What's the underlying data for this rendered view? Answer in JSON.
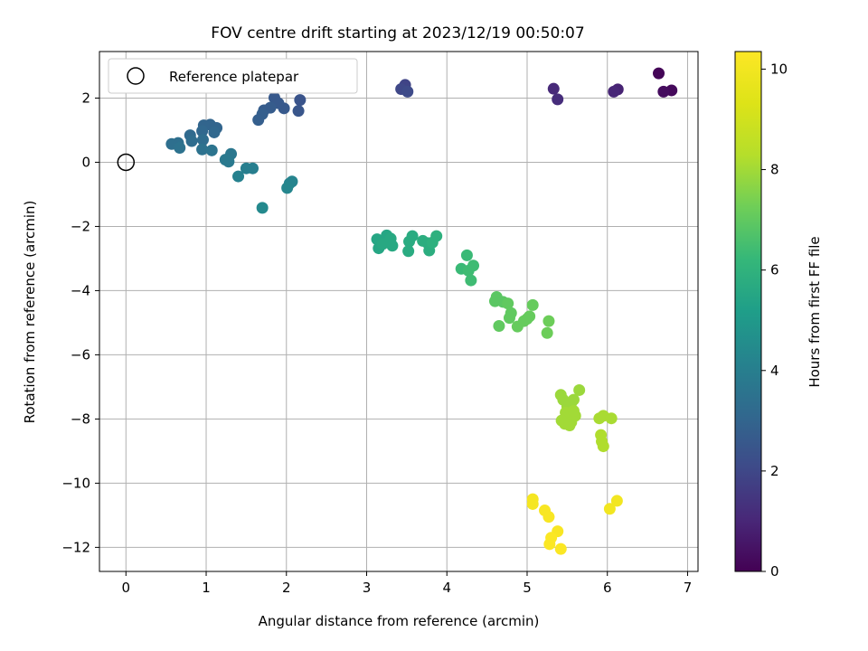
{
  "chart_data": {
    "type": "scatter",
    "title": "FOV centre drift starting at 2023/12/19 00:50:07",
    "xlabel": "Angular distance from reference (arcmin)",
    "ylabel": "Rotation from reference (arcmin)",
    "xlim": [
      -0.33,
      7.13
    ],
    "ylim": [
      -12.75,
      3.45
    ],
    "xticks": [
      0,
      1,
      2,
      3,
      4,
      5,
      6,
      7
    ],
    "xtick_labels": [
      "0",
      "1",
      "2",
      "3",
      "4",
      "5",
      "6",
      "7"
    ],
    "yticks": [
      2,
      0,
      -2,
      -4,
      -6,
      -8,
      -10,
      -12
    ],
    "ytick_labels": [
      "2",
      "0",
      "−2",
      "−4",
      "−6",
      "−8",
      "−10",
      "−12"
    ],
    "grid": true,
    "legend": {
      "placement": "top-left",
      "entries": [
        "Reference platepar"
      ]
    },
    "reference_point": {
      "x": 0,
      "y": 0
    },
    "colorbar": {
      "label": "Hours from first FF file",
      "range": [
        0,
        10.35
      ],
      "ticks": [
        0,
        2,
        4,
        6,
        8,
        10
      ],
      "tick_labels": [
        "0",
        "2",
        "4",
        "6",
        "8",
        "10"
      ],
      "colormap": "viridis"
    },
    "points": [
      {
        "x": 6.64,
        "y": 2.77,
        "h": 0.1
      },
      {
        "x": 6.8,
        "y": 2.24,
        "h": 0.2
      },
      {
        "x": 6.7,
        "y": 2.2,
        "h": 0.3
      },
      {
        "x": 6.13,
        "y": 2.27,
        "h": 0.9
      },
      {
        "x": 6.08,
        "y": 2.2,
        "h": 1.0
      },
      {
        "x": 5.33,
        "y": 2.29,
        "h": 1.1
      },
      {
        "x": 5.38,
        "y": 1.96,
        "h": 1.2
      },
      {
        "x": 3.48,
        "y": 2.41,
        "h": 1.9
      },
      {
        "x": 3.43,
        "y": 2.28,
        "h": 2.0
      },
      {
        "x": 3.51,
        "y": 2.2,
        "h": 2.1
      },
      {
        "x": 2.17,
        "y": 1.94,
        "h": 2.4
      },
      {
        "x": 2.15,
        "y": 1.6,
        "h": 2.5
      },
      {
        "x": 1.97,
        "y": 1.68,
        "h": 2.6
      },
      {
        "x": 1.85,
        "y": 2.01,
        "h": 2.6
      },
      {
        "x": 1.9,
        "y": 1.84,
        "h": 2.6
      },
      {
        "x": 1.8,
        "y": 1.7,
        "h": 2.7
      },
      {
        "x": 1.72,
        "y": 1.62,
        "h": 2.7
      },
      {
        "x": 1.7,
        "y": 1.5,
        "h": 2.8
      },
      {
        "x": 1.65,
        "y": 1.32,
        "h": 2.8
      },
      {
        "x": 1.13,
        "y": 1.07,
        "h": 3.0
      },
      {
        "x": 1.05,
        "y": 1.17,
        "h": 3.0
      },
      {
        "x": 0.97,
        "y": 1.15,
        "h": 3.0
      },
      {
        "x": 0.95,
        "y": 0.97,
        "h": 3.1
      },
      {
        "x": 1.1,
        "y": 0.93,
        "h": 3.1
      },
      {
        "x": 0.8,
        "y": 0.84,
        "h": 3.2
      },
      {
        "x": 0.96,
        "y": 0.7,
        "h": 3.3
      },
      {
        "x": 0.82,
        "y": 0.66,
        "h": 3.3
      },
      {
        "x": 0.65,
        "y": 0.6,
        "h": 3.4
      },
      {
        "x": 0.57,
        "y": 0.57,
        "h": 3.4
      },
      {
        "x": 0.67,
        "y": 0.45,
        "h": 3.5
      },
      {
        "x": 0.95,
        "y": 0.4,
        "h": 3.5
      },
      {
        "x": 1.07,
        "y": 0.37,
        "h": 3.6
      },
      {
        "x": 1.31,
        "y": 0.26,
        "h": 3.7
      },
      {
        "x": 1.24,
        "y": 0.08,
        "h": 3.8
      },
      {
        "x": 1.28,
        "y": 0.02,
        "h": 3.8
      },
      {
        "x": 1.58,
        "y": -0.19,
        "h": 4.0
      },
      {
        "x": 1.5,
        "y": -0.19,
        "h": 4.0
      },
      {
        "x": 1.4,
        "y": -0.44,
        "h": 4.1
      },
      {
        "x": 2.07,
        "y": -0.6,
        "h": 4.2
      },
      {
        "x": 2.04,
        "y": -0.66,
        "h": 4.2
      },
      {
        "x": 2.01,
        "y": -0.8,
        "h": 4.3
      },
      {
        "x": 1.7,
        "y": -1.42,
        "h": 4.4
      },
      {
        "x": 3.13,
        "y": -2.4,
        "h": 5.5
      },
      {
        "x": 3.15,
        "y": -2.68,
        "h": 5.5
      },
      {
        "x": 3.25,
        "y": -2.28,
        "h": 5.5
      },
      {
        "x": 3.2,
        "y": -2.55,
        "h": 5.6
      },
      {
        "x": 3.3,
        "y": -2.38,
        "h": 5.6
      },
      {
        "x": 3.32,
        "y": -2.6,
        "h": 5.6
      },
      {
        "x": 3.53,
        "y": -2.47,
        "h": 5.7
      },
      {
        "x": 3.57,
        "y": -2.3,
        "h": 5.7
      },
      {
        "x": 3.52,
        "y": -2.77,
        "h": 5.7
      },
      {
        "x": 3.7,
        "y": -2.45,
        "h": 5.8
      },
      {
        "x": 3.76,
        "y": -2.52,
        "h": 5.8
      },
      {
        "x": 3.78,
        "y": -2.75,
        "h": 5.8
      },
      {
        "x": 3.82,
        "y": -2.5,
        "h": 5.9
      },
      {
        "x": 3.87,
        "y": -2.3,
        "h": 5.9
      },
      {
        "x": 4.18,
        "y": -3.32,
        "h": 6.3
      },
      {
        "x": 4.25,
        "y": -2.9,
        "h": 6.3
      },
      {
        "x": 4.27,
        "y": -3.38,
        "h": 6.4
      },
      {
        "x": 4.33,
        "y": -3.22,
        "h": 6.4
      },
      {
        "x": 4.3,
        "y": -3.68,
        "h": 6.4
      },
      {
        "x": 4.6,
        "y": -4.33,
        "h": 6.9
      },
      {
        "x": 4.62,
        "y": -4.2,
        "h": 6.9
      },
      {
        "x": 4.7,
        "y": -4.35,
        "h": 6.9
      },
      {
        "x": 4.76,
        "y": -4.4,
        "h": 7.0
      },
      {
        "x": 4.8,
        "y": -4.7,
        "h": 7.0
      },
      {
        "x": 4.78,
        "y": -4.85,
        "h": 7.0
      },
      {
        "x": 4.65,
        "y": -5.1,
        "h": 7.0
      },
      {
        "x": 4.88,
        "y": -5.12,
        "h": 7.1
      },
      {
        "x": 4.96,
        "y": -4.95,
        "h": 7.1
      },
      {
        "x": 5.03,
        "y": -4.8,
        "h": 7.1
      },
      {
        "x": 5.07,
        "y": -4.45,
        "h": 7.1
      },
      {
        "x": 5.0,
        "y": -4.88,
        "h": 7.1
      },
      {
        "x": 5.27,
        "y": -4.95,
        "h": 7.2
      },
      {
        "x": 5.25,
        "y": -5.32,
        "h": 7.2
      },
      {
        "x": 5.42,
        "y": -7.25,
        "h": 7.9
      },
      {
        "x": 5.45,
        "y": -7.4,
        "h": 7.9
      },
      {
        "x": 5.5,
        "y": -7.6,
        "h": 7.9
      },
      {
        "x": 5.55,
        "y": -7.5,
        "h": 7.9
      },
      {
        "x": 5.58,
        "y": -7.4,
        "h": 7.9
      },
      {
        "x": 5.65,
        "y": -7.1,
        "h": 7.9
      },
      {
        "x": 5.48,
        "y": -7.8,
        "h": 8.0
      },
      {
        "x": 5.52,
        "y": -7.95,
        "h": 8.0
      },
      {
        "x": 5.55,
        "y": -8.1,
        "h": 8.0
      },
      {
        "x": 5.6,
        "y": -7.9,
        "h": 8.0
      },
      {
        "x": 5.43,
        "y": -8.05,
        "h": 8.0
      },
      {
        "x": 5.47,
        "y": -8.15,
        "h": 8.0
      },
      {
        "x": 5.58,
        "y": -7.75,
        "h": 8.0
      },
      {
        "x": 5.53,
        "y": -8.2,
        "h": 8.0
      },
      {
        "x": 5.9,
        "y": -7.98,
        "h": 8.1
      },
      {
        "x": 5.95,
        "y": -7.9,
        "h": 8.1
      },
      {
        "x": 6.05,
        "y": -7.98,
        "h": 8.1
      },
      {
        "x": 5.92,
        "y": -8.5,
        "h": 8.2
      },
      {
        "x": 5.93,
        "y": -8.7,
        "h": 8.2
      },
      {
        "x": 5.95,
        "y": -8.85,
        "h": 8.2
      },
      {
        "x": 5.07,
        "y": -10.5,
        "h": 10.1
      },
      {
        "x": 5.07,
        "y": -10.65,
        "h": 10.1
      },
      {
        "x": 5.22,
        "y": -10.85,
        "h": 10.2
      },
      {
        "x": 5.27,
        "y": -11.05,
        "h": 10.2
      },
      {
        "x": 5.38,
        "y": -11.5,
        "h": 10.2
      },
      {
        "x": 5.3,
        "y": -11.7,
        "h": 10.3
      },
      {
        "x": 5.28,
        "y": -11.9,
        "h": 10.3
      },
      {
        "x": 5.42,
        "y": -12.05,
        "h": 10.3
      },
      {
        "x": 6.12,
        "y": -10.55,
        "h": 10.0
      },
      {
        "x": 6.03,
        "y": -10.8,
        "h": 10.0
      }
    ]
  }
}
